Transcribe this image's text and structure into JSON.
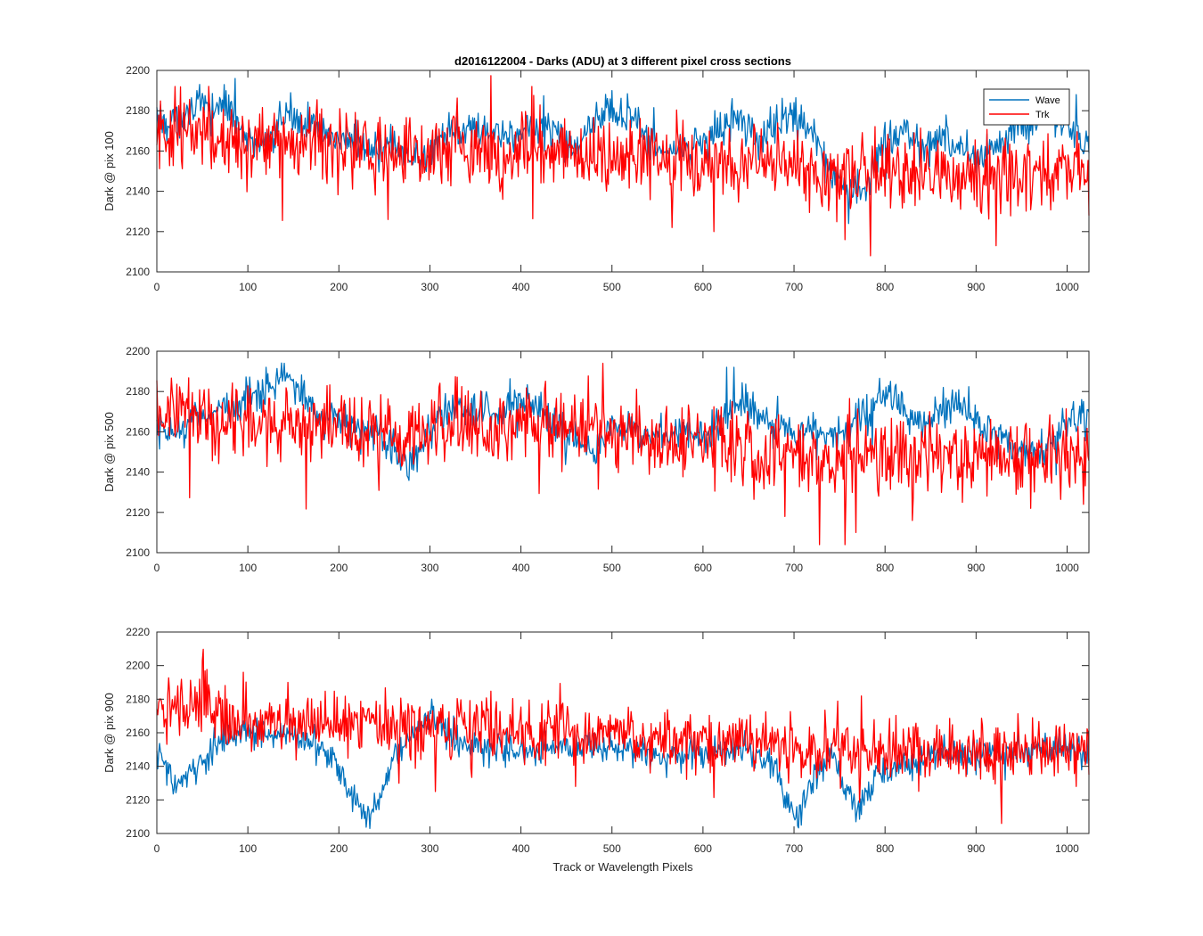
{
  "title": "d2016122004 - Darks (ADU) at 3 different pixel cross sections",
  "colors": {
    "wave": "#0072BD",
    "trk": "#FF0000",
    "axis": "#262626"
  },
  "chart_data": [
    {
      "type": "line",
      "title": "d2016122004 - Darks (ADU) at 3 different pixel cross sections",
      "xlabel": "",
      "ylabel": "Dark @ pix 100",
      "xlim": [
        0,
        1024
      ],
      "ylim": [
        2100,
        2200
      ],
      "xticks": [
        "0",
        "100",
        "200",
        "300",
        "400",
        "500",
        "600",
        "700",
        "800",
        "900",
        "1000"
      ],
      "yticks": [
        "2100",
        "2120",
        "2140",
        "2160",
        "2180",
        "2200"
      ],
      "grid": false,
      "legend": "top-right",
      "series": [
        {
          "name": "Wave",
          "x": [
            0,
            20,
            40,
            60,
            80,
            100,
            120,
            140,
            160,
            180,
            200,
            220,
            240,
            260,
            280,
            300,
            320,
            340,
            360,
            380,
            400,
            420,
            440,
            460,
            480,
            500,
            520,
            540,
            560,
            580,
            600,
            620,
            640,
            660,
            680,
            700,
            720,
            740,
            760,
            780,
            800,
            820,
            840,
            860,
            880,
            900,
            920,
            940,
            960,
            980,
            1000,
            1024
          ],
          "y": [
            2176,
            2174,
            2182,
            2180,
            2184,
            2166,
            2162,
            2178,
            2176,
            2168,
            2166,
            2164,
            2160,
            2162,
            2156,
            2158,
            2168,
            2172,
            2170,
            2168,
            2170,
            2172,
            2168,
            2162,
            2178,
            2180,
            2176,
            2166,
            2158,
            2162,
            2164,
            2170,
            2176,
            2164,
            2176,
            2178,
            2168,
            2150,
            2138,
            2144,
            2166,
            2170,
            2160,
            2168,
            2162,
            2156,
            2162,
            2170,
            2174,
            2180,
            2170,
            2160
          ],
          "spikes": [
            [
              86,
              2196
            ],
            [
              44,
              2190
            ],
            [
              500,
              2190
            ],
            [
              632,
              2186
            ],
            [
              700,
              2184
            ],
            [
              760,
              2124
            ],
            [
              1010,
              2188
            ]
          ]
        },
        {
          "name": "Trk",
          "x": [
            0,
            20,
            40,
            60,
            80,
            100,
            120,
            140,
            160,
            180,
            200,
            220,
            240,
            260,
            280,
            300,
            320,
            340,
            360,
            380,
            400,
            420,
            440,
            460,
            480,
            500,
            520,
            540,
            560,
            580,
            600,
            620,
            640,
            660,
            680,
            700,
            720,
            740,
            760,
            780,
            800,
            820,
            840,
            860,
            880,
            900,
            920,
            940,
            960,
            980,
            1000,
            1024
          ],
          "y": [
            2168,
            2170,
            2168,
            2166,
            2168,
            2164,
            2166,
            2162,
            2164,
            2162,
            2160,
            2162,
            2160,
            2158,
            2162,
            2160,
            2162,
            2162,
            2160,
            2158,
            2160,
            2162,
            2158,
            2158,
            2160,
            2158,
            2156,
            2156,
            2154,
            2156,
            2154,
            2154,
            2152,
            2152,
            2150,
            2152,
            2150,
            2148,
            2148,
            2150,
            2150,
            2150,
            2148,
            2150,
            2148,
            2150,
            2148,
            2148,
            2150,
            2150,
            2150,
            2150
          ],
          "spikes": [
            [
              20,
              2192
            ],
            [
              412,
              2192
            ],
            [
              566,
              2122
            ],
            [
              612,
              2120
            ],
            [
              756,
              2116
            ],
            [
              784,
              2108
            ],
            [
              922,
              2113
            ],
            [
              1024,
              2128
            ],
            [
              254,
              2126
            ]
          ]
        }
      ]
    },
    {
      "type": "line",
      "xlabel": "",
      "ylabel": "Dark @ pix 500",
      "xlim": [
        0,
        1024
      ],
      "ylim": [
        2100,
        2200
      ],
      "xticks": [
        "0",
        "100",
        "200",
        "300",
        "400",
        "500",
        "600",
        "700",
        "800",
        "900",
        "1000"
      ],
      "yticks": [
        "2100",
        "2120",
        "2140",
        "2160",
        "2180",
        "2200"
      ],
      "grid": false,
      "series": [
        {
          "name": "Wave",
          "x": [
            0,
            20,
            40,
            60,
            80,
            100,
            120,
            140,
            160,
            180,
            200,
            220,
            240,
            260,
            280,
            300,
            320,
            340,
            360,
            380,
            400,
            420,
            440,
            460,
            480,
            500,
            520,
            540,
            560,
            580,
            600,
            620,
            640,
            660,
            680,
            700,
            720,
            740,
            760,
            780,
            800,
            820,
            840,
            860,
            880,
            900,
            920,
            940,
            960,
            980,
            1000,
            1024
          ],
          "y": [
            2158,
            2160,
            2166,
            2170,
            2172,
            2176,
            2184,
            2188,
            2178,
            2168,
            2166,
            2164,
            2160,
            2150,
            2146,
            2160,
            2172,
            2170,
            2168,
            2172,
            2174,
            2170,
            2162,
            2156,
            2150,
            2160,
            2164,
            2156,
            2158,
            2160,
            2156,
            2166,
            2176,
            2170,
            2162,
            2160,
            2162,
            2156,
            2160,
            2170,
            2178,
            2172,
            2164,
            2168,
            2174,
            2166,
            2158,
            2152,
            2150,
            2156,
            2164,
            2168
          ],
          "spikes": [
            [
              120,
              2192
            ],
            [
              140,
              2194
            ],
            [
              626,
              2192
            ],
            [
              634,
              2192
            ],
            [
              864,
              2182
            ],
            [
              1016,
              2176
            ]
          ]
        },
        {
          "name": "Trk",
          "x": [
            0,
            20,
            40,
            60,
            80,
            100,
            120,
            140,
            160,
            180,
            200,
            220,
            240,
            260,
            280,
            300,
            320,
            340,
            360,
            380,
            400,
            420,
            440,
            460,
            480,
            500,
            520,
            540,
            560,
            580,
            600,
            620,
            640,
            660,
            680,
            700,
            720,
            740,
            760,
            780,
            800,
            820,
            840,
            860,
            880,
            900,
            920,
            940,
            960,
            980,
            1000,
            1024
          ],
          "y": [
            2168,
            2166,
            2170,
            2168,
            2166,
            2164,
            2166,
            2162,
            2164,
            2162,
            2164,
            2160,
            2162,
            2158,
            2160,
            2162,
            2164,
            2162,
            2160,
            2162,
            2164,
            2162,
            2160,
            2160,
            2162,
            2160,
            2158,
            2156,
            2156,
            2154,
            2156,
            2154,
            2152,
            2150,
            2150,
            2148,
            2148,
            2146,
            2146,
            2148,
            2148,
            2148,
            2150,
            2148,
            2146,
            2148,
            2146,
            2146,
            2146,
            2148,
            2148,
            2150
          ],
          "spikes": [
            [
              490,
              2194
            ],
            [
              728,
              2104
            ],
            [
              756,
              2104
            ],
            [
              768,
              2110
            ],
            [
              690,
              2118
            ],
            [
              830,
              2116
            ],
            [
              1018,
              2124
            ],
            [
              960,
              2122
            ]
          ]
        }
      ]
    },
    {
      "type": "line",
      "xlabel": "Track or Wavelength Pixels",
      "ylabel": "Dark @ pix 900",
      "xlim": [
        0,
        1024
      ],
      "ylim": [
        2100,
        2220
      ],
      "xticks": [
        "0",
        "100",
        "200",
        "300",
        "400",
        "500",
        "600",
        "700",
        "800",
        "900",
        "1000"
      ],
      "yticks": [
        "2100",
        "2120",
        "2140",
        "2160",
        "2180",
        "2200",
        "2220"
      ],
      "grid": false,
      "series": [
        {
          "name": "Wave",
          "x": [
            0,
            10,
            20,
            40,
            60,
            80,
            100,
            120,
            140,
            160,
            180,
            200,
            215,
            230,
            245,
            260,
            280,
            300,
            320,
            340,
            360,
            380,
            400,
            420,
            440,
            460,
            480,
            500,
            520,
            540,
            560,
            580,
            600,
            620,
            640,
            660,
            680,
            690,
            705,
            720,
            740,
            755,
            770,
            790,
            810,
            830,
            850,
            870,
            890,
            910,
            930,
            950,
            970,
            990,
            1010,
            1024
          ],
          "y": [
            2148,
            2140,
            2128,
            2135,
            2150,
            2160,
            2160,
            2158,
            2160,
            2156,
            2152,
            2140,
            2122,
            2110,
            2120,
            2148,
            2158,
            2170,
            2160,
            2150,
            2150,
            2152,
            2148,
            2150,
            2152,
            2152,
            2154,
            2150,
            2150,
            2148,
            2144,
            2146,
            2148,
            2150,
            2148,
            2146,
            2140,
            2122,
            2110,
            2132,
            2148,
            2128,
            2115,
            2132,
            2140,
            2142,
            2146,
            2148,
            2146,
            2148,
            2150,
            2148,
            2150,
            2150,
            2150,
            2148
          ],
          "spikes": [
            [
              234,
              2103
            ],
            [
              302,
              2180
            ],
            [
              708,
              2105
            ],
            [
              768,
              2107
            ]
          ]
        },
        {
          "name": "Trk",
          "x": [
            0,
            20,
            40,
            60,
            80,
            100,
            120,
            140,
            160,
            180,
            200,
            220,
            240,
            260,
            280,
            300,
            320,
            340,
            360,
            380,
            400,
            420,
            440,
            460,
            480,
            500,
            520,
            540,
            560,
            580,
            600,
            620,
            640,
            660,
            680,
            700,
            720,
            740,
            760,
            780,
            800,
            820,
            840,
            860,
            880,
            900,
            920,
            940,
            960,
            980,
            1000,
            1024
          ],
          "y": [
            2170,
            2176,
            2178,
            2176,
            2170,
            2168,
            2166,
            2164,
            2166,
            2162,
            2164,
            2166,
            2168,
            2164,
            2162,
            2160,
            2164,
            2162,
            2164,
            2160,
            2162,
            2160,
            2162,
            2158,
            2160,
            2160,
            2158,
            2156,
            2158,
            2156,
            2154,
            2156,
            2154,
            2152,
            2152,
            2152,
            2150,
            2150,
            2150,
            2150,
            2148,
            2150,
            2148,
            2150,
            2148,
            2150,
            2150,
            2148,
            2150,
            2148,
            2150,
            2152
          ],
          "spikes": [
            [
              50,
              2203
            ],
            [
              144,
              2190
            ],
            [
              306,
              2125
            ],
            [
              460,
              2128
            ],
            [
              928,
              2106
            ],
            [
              1010,
              2128
            ]
          ]
        }
      ]
    }
  ]
}
